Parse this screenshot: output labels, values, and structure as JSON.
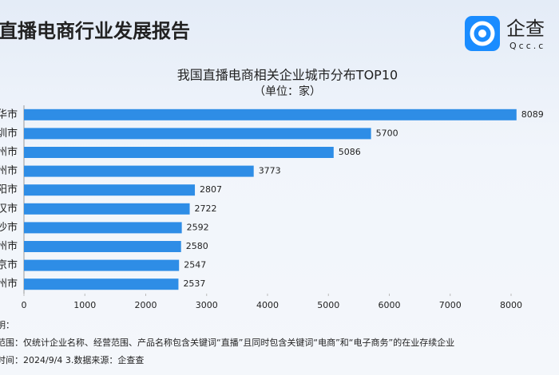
{
  "header": {
    "title": "直播电商行业发展报告",
    "logo_name": "企查",
    "logo_domain": "Qcc.c"
  },
  "chart_data": {
    "type": "bar",
    "orientation": "horizontal",
    "title": "我国直播电商相关企业城市分布TOP10",
    "subtitle": "（单位：家）",
    "categories": [
      "华市",
      "圳市",
      "州市",
      "州市",
      "阳市",
      "汉市",
      "沙市",
      "州市",
      "京市",
      "州市"
    ],
    "values": [
      8089,
      5700,
      5086,
      3773,
      2807,
      2722,
      2592,
      2580,
      2547,
      2537
    ],
    "color": "#2e8de6",
    "xlim": [
      0,
      8000
    ],
    "xticks": [
      0,
      1000,
      2000,
      3000,
      4000,
      5000,
      6000,
      7000,
      8000
    ]
  },
  "footer": {
    "lines": [
      "明：",
      "范围：仅统计企业名称、经营范围、产品名称包含关键词“直播”且同时包含关键词“电商”和“电子商务”的在业存续企业",
      "时间：2024/9/4    3.数据来源：企查查"
    ]
  }
}
